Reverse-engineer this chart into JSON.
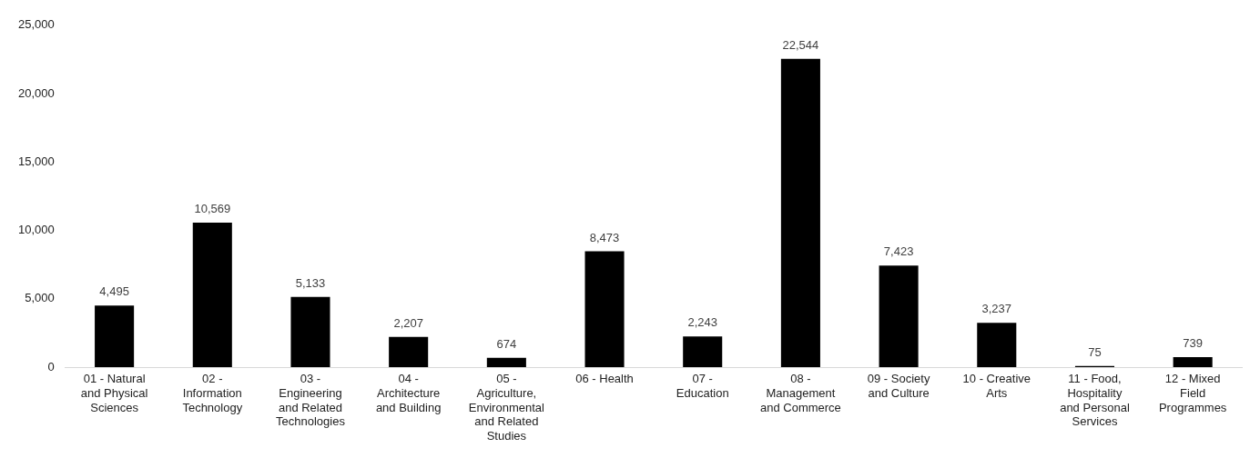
{
  "chart_data": {
    "type": "bar",
    "categories": [
      "01 - Natural and Physical Sciences",
      "02 - Information Technology",
      "03 - Engineering and Related Technologies",
      "04 - Architecture and Building",
      "05 - Agriculture, Environmental and Related Studies",
      "06 - Health",
      "07 - Education",
      "08 - Management and Commerce",
      "09 - Society and Culture",
      "10 - Creative Arts",
      "11 - Food, Hospitality and Personal Services",
      "12 - Mixed Field Programmes"
    ],
    "values": [
      4495,
      10569,
      5133,
      2207,
      674,
      8473,
      2243,
      22544,
      7423,
      3237,
      75,
      739
    ],
    "value_labels": [
      "4,495",
      "10,569",
      "5,133",
      "2,207",
      "674",
      "8,473",
      "2,243",
      "22,544",
      "7,423",
      "3,237",
      "75",
      "739"
    ],
    "color": "#000000",
    "ylim": [
      0,
      25000
    ],
    "yticks": [
      {
        "value": 0,
        "label": "0"
      },
      {
        "value": 5000,
        "label": "5,000"
      },
      {
        "value": 10000,
        "label": "10,000"
      },
      {
        "value": 15000,
        "label": "15,000"
      },
      {
        "value": 20000,
        "label": "20,000"
      },
      {
        "value": 25000,
        "label": "25,000"
      }
    ],
    "grid": false,
    "legend": false
  }
}
